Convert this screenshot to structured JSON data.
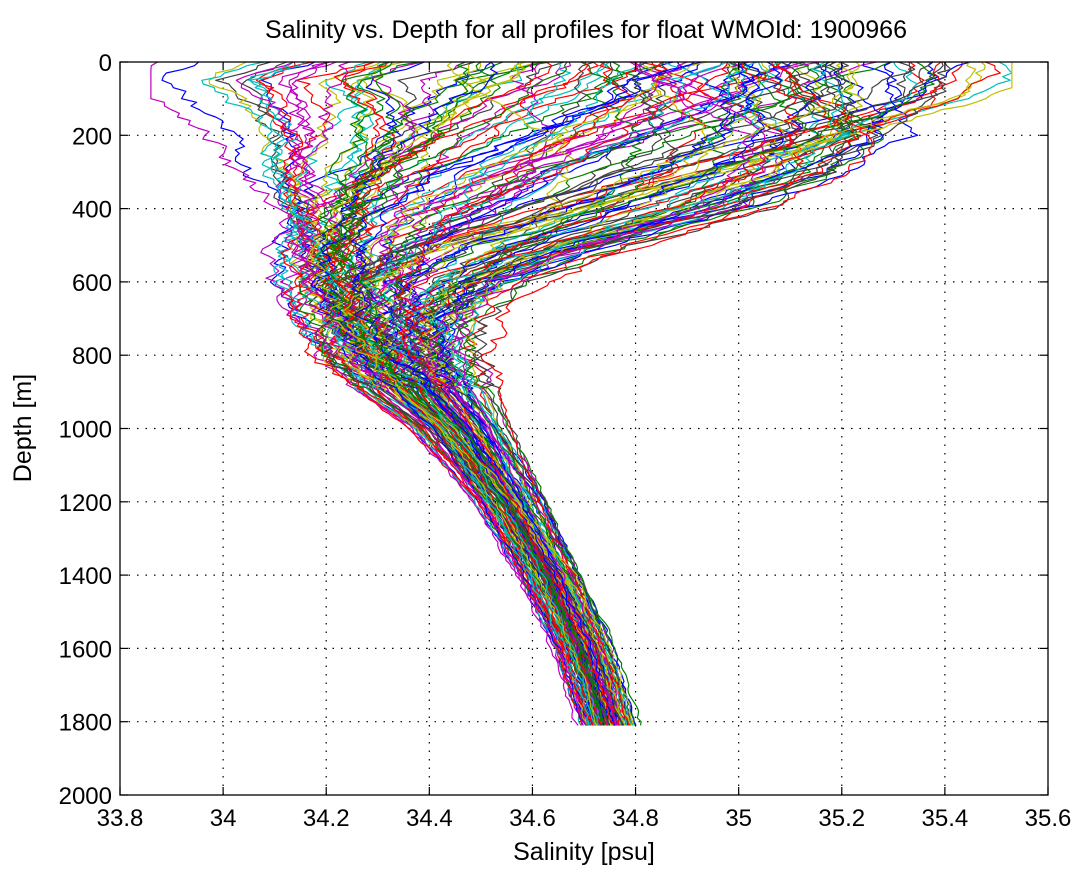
{
  "chart_data": {
    "type": "line",
    "title": "Salinity vs. Depth for all profiles for float WMOId: 1900966",
    "xlabel": "Salinity [psu]",
    "ylabel": "Depth [m]",
    "xlim": [
      33.8,
      35.6
    ],
    "ylim": [
      0,
      2000
    ],
    "y_reversed": true,
    "grid": true,
    "legend": "none",
    "x_ticks": [
      "33.8",
      "34",
      "34.2",
      "34.4",
      "34.6",
      "34.8",
      "35",
      "35.2",
      "35.4",
      "35.6"
    ],
    "y_ticks": [
      "0",
      "200",
      "400",
      "600",
      "800",
      "1000",
      "1200",
      "1400",
      "1600",
      "1800",
      "2000"
    ],
    "colors": [
      "#0000ff",
      "#008000",
      "#ff0000",
      "#00bfbf",
      "#bf00bf",
      "#bfbf00",
      "#404040"
    ],
    "profile_count": 150,
    "depth_range": [
      0,
      1810
    ],
    "representative_profiles": [
      {
        "depth": [
          0,
          50,
          100,
          200,
          300,
          400,
          500,
          600,
          700,
          800,
          900,
          1000,
          1200,
          1400,
          1600,
          1810
        ],
        "salinity": [
          35.5,
          35.5,
          35.45,
          35.2,
          34.95,
          34.7,
          34.45,
          34.3,
          34.25,
          34.25,
          34.32,
          34.42,
          34.55,
          34.66,
          34.73,
          34.78
        ]
      },
      {
        "depth": [
          0,
          50,
          100,
          200,
          300,
          400,
          500,
          600,
          700,
          800,
          900,
          1000,
          1200,
          1400,
          1600,
          1810
        ],
        "salinity": [
          34.6,
          34.6,
          34.5,
          34.4,
          34.3,
          34.22,
          34.18,
          34.18,
          34.22,
          34.27,
          34.34,
          34.42,
          34.52,
          34.6,
          34.67,
          34.72
        ]
      },
      {
        "depth": [
          0,
          50,
          100,
          200,
          300,
          400,
          500,
          600,
          700,
          800,
          900,
          1000,
          1200,
          1400,
          1600,
          1810
        ],
        "salinity": [
          34.1,
          34.0,
          34.05,
          34.1,
          34.1,
          34.14,
          34.16,
          34.18,
          34.22,
          34.27,
          34.34,
          34.42,
          34.53,
          34.61,
          34.68,
          34.73
        ]
      },
      {
        "depth": [
          0,
          50,
          100,
          200,
          300,
          400,
          500,
          600,
          700,
          800,
          900,
          1000,
          1200,
          1400,
          1600,
          1810
        ],
        "salinity": [
          35.1,
          35.0,
          34.95,
          34.75,
          34.55,
          34.42,
          34.35,
          34.33,
          34.36,
          34.42,
          34.47,
          34.52,
          34.6,
          34.66,
          34.72,
          34.76
        ]
      },
      {
        "depth": [
          0,
          50,
          100,
          200,
          300,
          400,
          500,
          600,
          700,
          800,
          900,
          1000,
          1200,
          1400,
          1600,
          1810
        ],
        "salinity": [
          35.0,
          35.05,
          35.1,
          35.2,
          35.15,
          35.0,
          34.75,
          34.55,
          34.45,
          34.43,
          34.46,
          34.5,
          34.58,
          34.65,
          34.71,
          34.76
        ]
      }
    ]
  }
}
